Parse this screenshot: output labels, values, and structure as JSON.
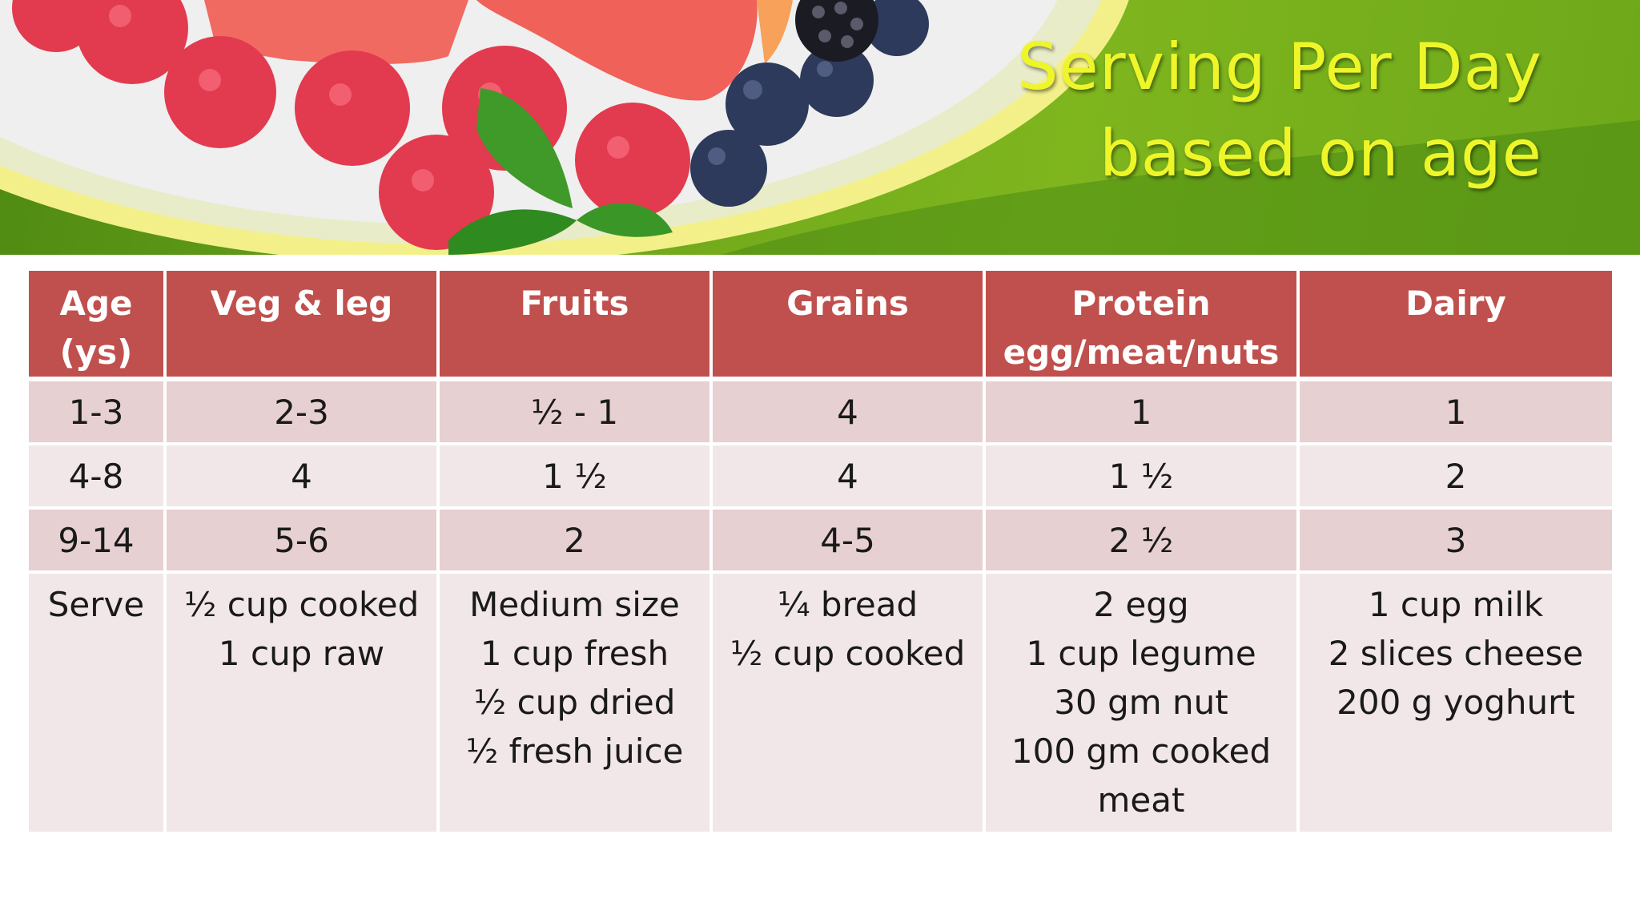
{
  "slide": {
    "title_line1": "Serving Per Day",
    "title_line2": "based on age"
  },
  "table": {
    "headers": [
      {
        "line1": "Age",
        "line2": "(ys)"
      },
      {
        "line1": "Veg & leg",
        "line2": ""
      },
      {
        "line1": "Fruits",
        "line2": ""
      },
      {
        "line1": "Grains",
        "line2": ""
      },
      {
        "line1": "Protein",
        "line2": "egg/meat/nuts"
      },
      {
        "line1": "Dairy",
        "line2": ""
      }
    ],
    "rows": [
      [
        "1-3",
        "2-3",
        "½ - 1",
        "4",
        "1",
        "1"
      ],
      [
        "4-8",
        "4",
        "1 ½",
        "4",
        "1 ½",
        "2"
      ],
      [
        "9-14",
        "5-6",
        "2",
        "4-5",
        "2 ½",
        "3"
      ]
    ],
    "serve_row": {
      "label": "Serve",
      "veg": [
        "½ cup cooked",
        "1 cup raw"
      ],
      "fruits": [
        "Medium size",
        "1 cup fresh",
        "½ cup dried",
        "½ fresh juice"
      ],
      "grains": [
        "¼ bread",
        "½ cup cooked"
      ],
      "protein": [
        "2 egg",
        "1 cup legume",
        "30 gm nut",
        "100 gm cooked",
        "meat"
      ],
      "dairy": [
        "1 cup milk",
        "2  slices cheese",
        "200 g yoghurt"
      ]
    }
  },
  "colors": {
    "header_bg": "#c0504d",
    "row_dark": "#e7d0d1",
    "row_light": "#f1e7e8",
    "title": "#eef62a",
    "banner_green": "#6aa31b"
  }
}
